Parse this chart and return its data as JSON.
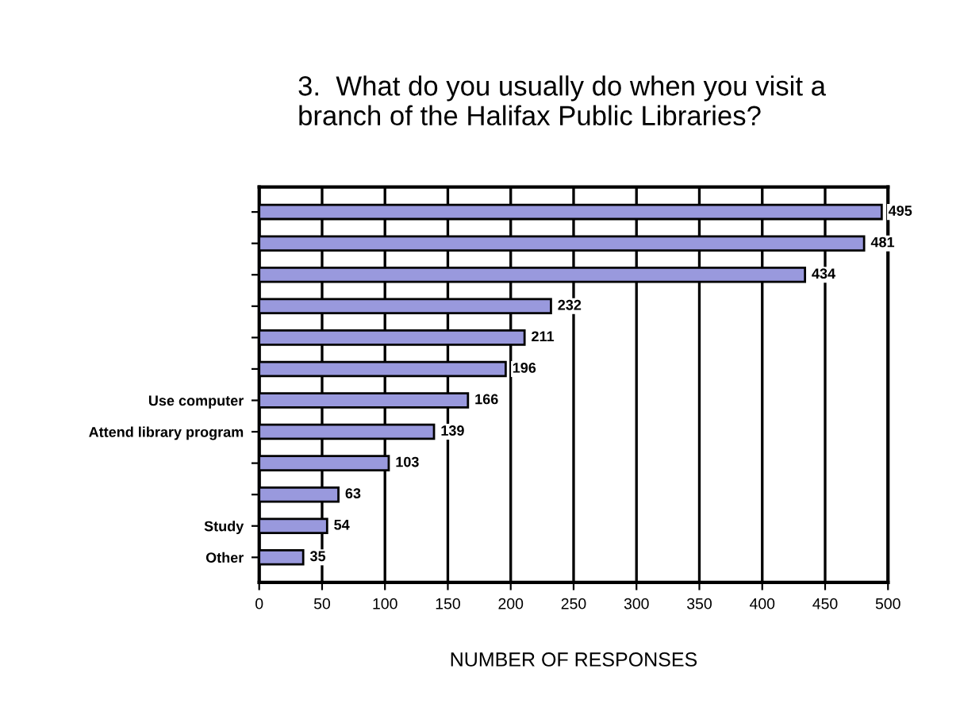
{
  "chart_data": {
    "type": "bar",
    "orientation": "horizontal",
    "title": "3.  What do you usually do when you visit a\nbranch of the Halifax Public Libraries?",
    "xlabel": "NUMBER OF RESPONSES",
    "categories": [
      null,
      null,
      null,
      null,
      null,
      null,
      "Use computer",
      "Attend library program",
      null,
      null,
      "Study",
      "Other"
    ],
    "values": [
      495,
      481,
      434,
      232,
      211,
      196,
      166,
      139,
      103,
      63,
      54,
      35
    ],
    "color": "#9999dd",
    "xlim": [
      0,
      500
    ],
    "xticks": [
      0,
      50,
      100,
      150,
      200,
      250,
      300,
      350,
      400,
      450,
      500
    ],
    "grid": "x",
    "data_labels": true
  }
}
